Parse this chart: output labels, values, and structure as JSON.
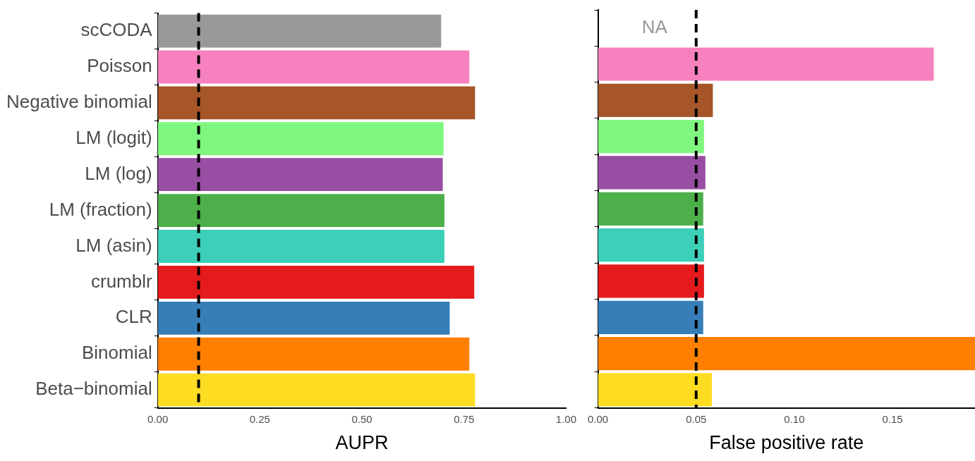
{
  "chart_data": [
    {
      "type": "bar",
      "orientation": "horizontal",
      "xlabel": "AUPR",
      "categories": [
        "scCODA",
        "Poisson",
        "Negative binomial",
        "LM (logit)",
        "LM (log)",
        "LM (fraction)",
        "LM (asin)",
        "crumblr",
        "CLR",
        "Binomial",
        "Beta−binomial"
      ],
      "values": [
        0.694,
        0.763,
        0.777,
        0.7,
        0.698,
        0.702,
        0.702,
        0.775,
        0.715,
        0.763,
        0.777
      ],
      "colors": [
        "#999999",
        "#f781bf",
        "#a65628",
        "#7ff77f",
        "#984ea3",
        "#4daf4a",
        "#3ccfb9",
        "#e41a1c",
        "#377eb8",
        "#ff7f00",
        "#fedc22"
      ],
      "xlim": [
        0,
        1
      ],
      "xticks": [
        {
          "value": 0,
          "label": "0.00"
        },
        {
          "value": 0.25,
          "label": "0.25"
        },
        {
          "value": 0.5,
          "label": "0.50"
        },
        {
          "value": 0.75,
          "label": "0.75"
        },
        {
          "value": 1,
          "label": "1.00"
        }
      ],
      "ref_lines": [
        {
          "axis": "x",
          "value": 0.1,
          "color": "#000000",
          "line_style": "dashed"
        }
      ],
      "grid": false,
      "legend": false
    },
    {
      "type": "bar",
      "orientation": "horizontal",
      "xlabel": "False positive rate",
      "categories": [
        null,
        null,
        null,
        null,
        null,
        null,
        null,
        null,
        null,
        null,
        null
      ],
      "values": [
        null,
        0.171,
        0.0585,
        0.054,
        0.0547,
        0.0536,
        0.054,
        0.054,
        0.0536,
        0.192,
        0.058
      ],
      "colors": [
        "#999999",
        "#f781bf",
        "#a65628",
        "#7ff77f",
        "#984ea3",
        "#4daf4a",
        "#3ccfb9",
        "#e41a1c",
        "#377eb8",
        "#ff7f00",
        "#fedc22"
      ],
      "xlim": [
        0,
        0.192
      ],
      "xticks": [
        {
          "value": 0,
          "label": "0.00"
        },
        {
          "value": 0.05,
          "label": "0.05"
        },
        {
          "value": 0.1,
          "label": "0.10"
        },
        {
          "value": 0.15,
          "label": "0.15"
        }
      ],
      "tick_labels": "x",
      "annotations": [
        "NA"
      ],
      "ref_lines": [
        {
          "axis": "x",
          "value": 0.05,
          "color": "#000000",
          "line_style": "dashed"
        }
      ],
      "grid": false,
      "legend": false
    }
  ]
}
